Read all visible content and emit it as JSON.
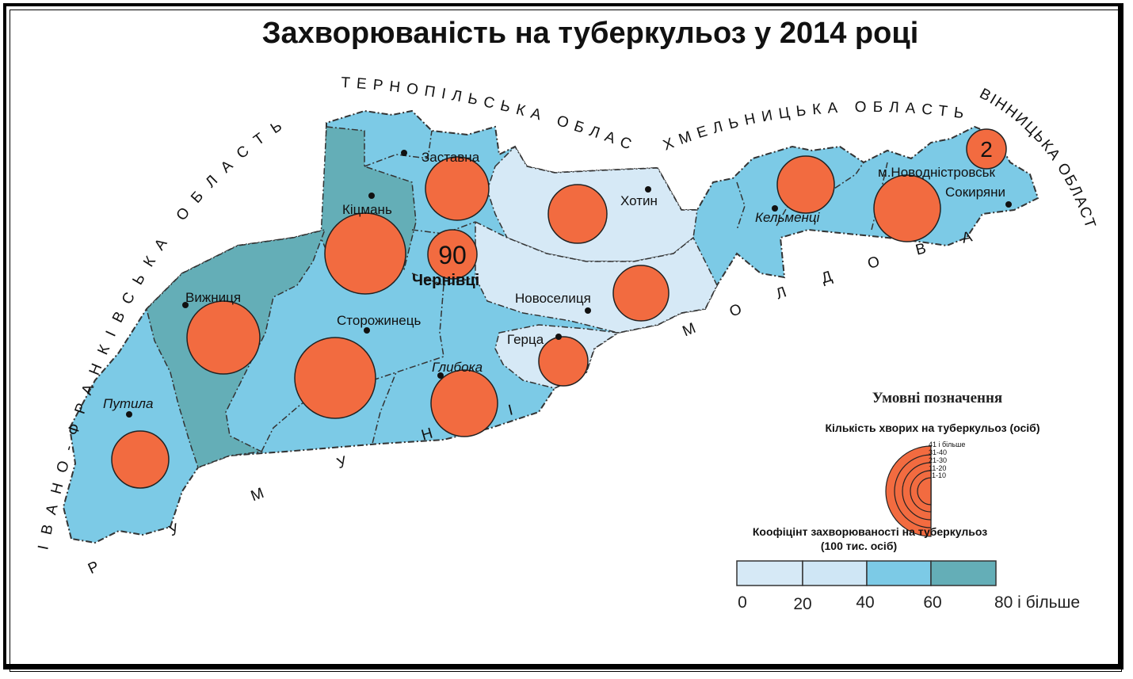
{
  "title": "Захворюваність на туберкульоз у 2014 році",
  "colors": {
    "c0_20": "#d6e9f6",
    "c20_40": "#cfe6f5",
    "c40_60": "#7ccae6",
    "c60_80": "#64aeb7",
    "circle": "#f26b40"
  },
  "cities": {
    "zastavna": "Заставна",
    "kitsman": "Кіцмань",
    "chernivtsi": "Чернівці",
    "khotyn": "Хотин",
    "kelmentsi": "Кельменці",
    "novodnistrovsk": "м.Новодністровськ",
    "sokyriany": "Сокиряни",
    "vyzhnytsia": "Вижниця",
    "storozhynets": "Сторожинець",
    "novoselytsia": "Новоселиця",
    "hertsa": "Герца",
    "hlyboka": "Глибока",
    "putyla": "Путила"
  },
  "circle_values": {
    "chernivtsi": "90",
    "novodnistrovsk": "2"
  },
  "neighbors": {
    "ternopil": "ТЕРНОПІЛЬСЬКА ОБЛАСТЬ",
    "khmelnytskyi": "ХМЕЛЬНИЦЬКА ОБЛАСТЬ",
    "vinnytsia": "ВІННИЦЬКА ОБЛАСТЬ",
    "ivano_frankivsk": "ІВАНО-ФРАНКІВСЬКА ОБЛАСТЬ",
    "moldova": "МОЛДОВА",
    "romania": "РУМУНІЯ"
  },
  "legend": {
    "title": "Умовні позначення",
    "circles_title": "Кількість хворих на туберкульоз (осіб)",
    "circle_levels": [
      "41 і більше",
      "31-40",
      "21-30",
      "11-20",
      "1-10"
    ],
    "rate_title_1": "Коофіцінт захворюваності на туберкульоз",
    "rate_title_2": "(100 тис. осіб)",
    "rate_ticks": [
      "0",
      "20",
      "40",
      "60",
      "80 і більше"
    ]
  }
}
